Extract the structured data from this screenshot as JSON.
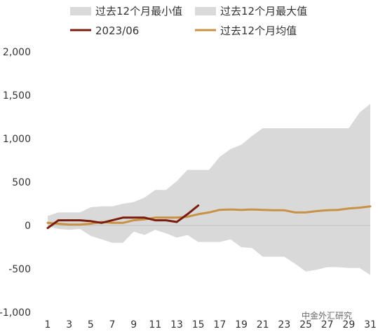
{
  "chart_data": {
    "type": "area",
    "x": [
      1,
      2,
      3,
      4,
      5,
      6,
      7,
      8,
      9,
      10,
      11,
      12,
      13,
      14,
      15,
      16,
      17,
      18,
      19,
      20,
      21,
      22,
      23,
      24,
      25,
      26,
      27,
      28,
      29,
      30,
      31
    ],
    "ylim": [
      -1000,
      2000
    ],
    "yticks": [
      -1000,
      -500,
      0,
      500,
      1000,
      1500,
      2000
    ],
    "ytick_labels": [
      "-1,000",
      "-500",
      "0",
      "500",
      "1,000",
      "1,500",
      "2,000"
    ],
    "xticks": [
      1,
      3,
      5,
      7,
      9,
      11,
      13,
      15,
      17,
      19,
      21,
      23,
      25,
      27,
      29,
      31
    ],
    "xtick_labels": [
      "1",
      "3",
      "5",
      "7",
      "9",
      "11",
      "13",
      "15",
      "17",
      "19",
      "21",
      "23",
      "25",
      "27",
      "29",
      "31"
    ],
    "grid": false,
    "legend_position": "top",
    "series": [
      {
        "name": "过去12个月最小值",
        "kind": "band-lower",
        "color": "#d9d9d9",
        "values": [
          -10,
          -40,
          -50,
          -40,
          -120,
          -160,
          -200,
          -200,
          -70,
          -110,
          -50,
          -90,
          -140,
          -110,
          -190,
          -190,
          -190,
          -160,
          -250,
          -260,
          -360,
          -360,
          -360,
          -440,
          -530,
          -510,
          -480,
          -480,
          -490,
          -490,
          -570
        ]
      },
      {
        "name": "过去12个月最大值",
        "kind": "band-upper",
        "color": "#d9d9d9",
        "values": [
          110,
          150,
          150,
          150,
          210,
          220,
          220,
          250,
          270,
          320,
          410,
          410,
          510,
          640,
          640,
          640,
          790,
          880,
          930,
          1030,
          1120,
          1120,
          1120,
          1120,
          1120,
          1120,
          1120,
          1120,
          1120,
          1300,
          1400
        ]
      },
      {
        "name": "2023/06",
        "kind": "line",
        "color": "#7b1c0f",
        "x": [
          1,
          2,
          3,
          4,
          5,
          6,
          7,
          8,
          9,
          10,
          11,
          12,
          13,
          14,
          15
        ],
        "values": [
          -30,
          60,
          60,
          60,
          50,
          30,
          60,
          90,
          90,
          90,
          60,
          60,
          40,
          130,
          230
        ]
      },
      {
        "name": "过去12个月均值",
        "kind": "line",
        "color": "#c89146",
        "values": [
          30,
          20,
          10,
          10,
          20,
          40,
          30,
          30,
          60,
          70,
          90,
          90,
          90,
          100,
          130,
          150,
          180,
          185,
          180,
          185,
          180,
          175,
          175,
          150,
          150,
          165,
          175,
          180,
          195,
          205,
          220
        ]
      }
    ]
  },
  "watermark": "中金外汇研究"
}
